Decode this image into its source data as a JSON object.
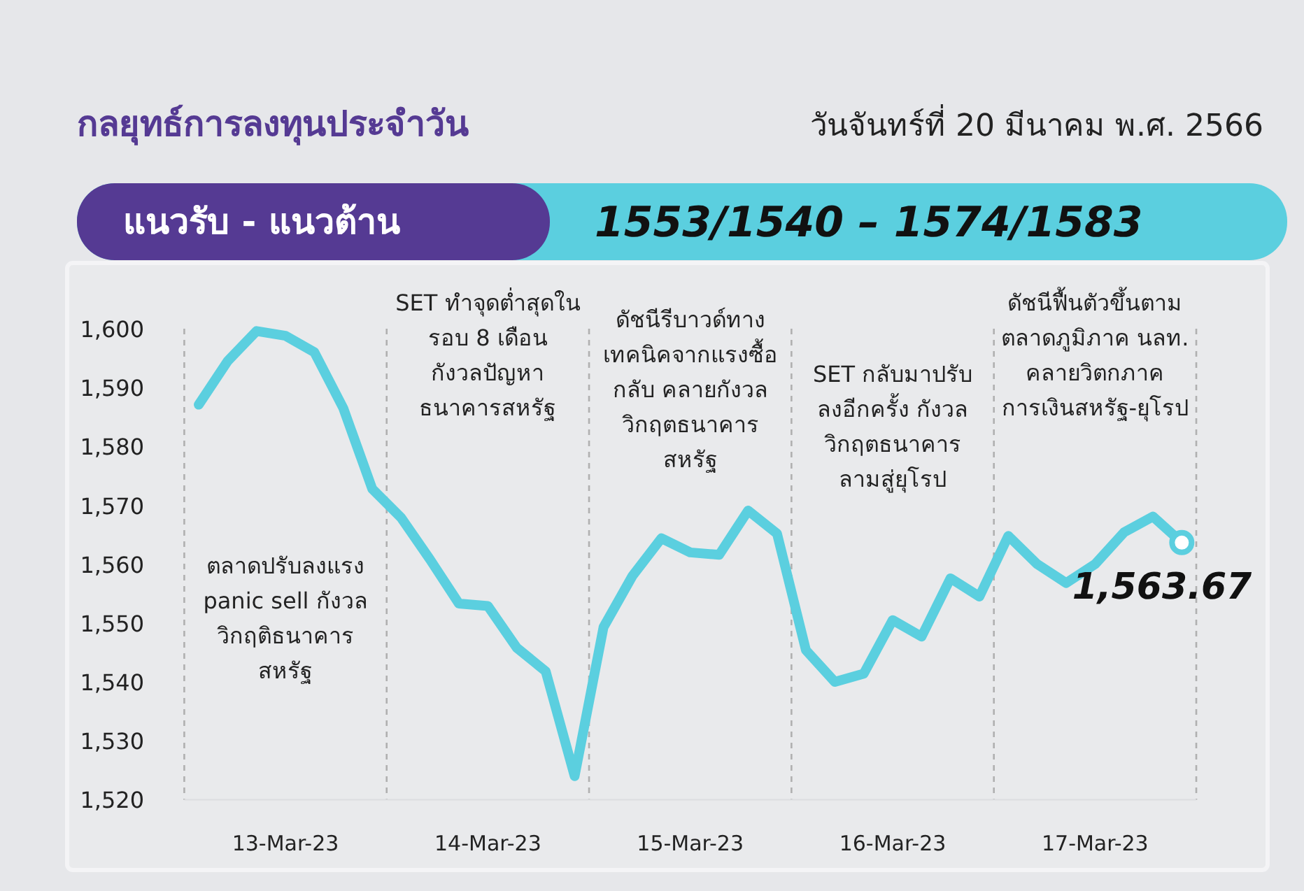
{
  "chart_data": {
    "type": "line",
    "title": "กลยุทธ์การลงทุนประจำวัน",
    "subtitle": "วันจันทร์ที่ 20 มีนาคม พ.ศ. 2566",
    "categories": [
      null,
      null,
      null,
      "13-Mar-23",
      null,
      null,
      null,
      null,
      null,
      null,
      "14-Mar-23",
      null,
      null,
      null,
      null,
      null,
      null,
      "15-Mar-23",
      null,
      null,
      null,
      null,
      null,
      null,
      "16-Mar-23",
      null,
      null,
      null,
      null,
      null,
      null,
      "17-Mar-23",
      null,
      null,
      null
    ],
    "series": [
      {
        "color": "#5bcfdf",
        "values": [
          1587.1,
          1594.5,
          1599.6,
          1598.8,
          1596.0,
          1586.5,
          1572.8,
          1567.9,
          1560.8,
          1553.3,
          1552.9,
          1545.8,
          1541.8,
          1524.0,
          1549.3,
          1558.0,
          1564.4,
          1562.0,
          1561.6,
          1569.1,
          1565.2,
          1545.4,
          1540.0,
          1541.4,
          1550.5,
          1547.7,
          1557.6,
          1554.5,
          1564.8,
          1560.0,
          1556.8,
          1560.0,
          1565.4,
          1568.1,
          1563.67
        ]
      }
    ],
    "ylim": [
      1520,
      1600
    ],
    "yticks": [
      {
        "value": 1520,
        "label": "1,520"
      },
      {
        "value": 1530,
        "label": "1,530"
      },
      {
        "value": 1540,
        "label": "1,540"
      },
      {
        "value": 1550,
        "label": "1,550"
      },
      {
        "value": 1560,
        "label": "1,560"
      },
      {
        "value": 1570,
        "label": "1,570"
      },
      {
        "value": 1580,
        "label": "1,580"
      },
      {
        "value": 1590,
        "label": "1,590"
      },
      {
        "value": 1600,
        "label": "1,600"
      }
    ],
    "annotations": [
      "แนวรับ - แนวต้าน",
      "1553/1540 – 1574/1583",
      "ตลาดปรับลงแรง\npanic sell กังวล\nวิกฤติธนาคาร\nสหรัฐ",
      "SET ทำจุดต่ำสุดใน\nรอบ 8 เดือน\nกังวลปัญหา\nธนาคารสหรัฐ",
      "ดัชนีรีบาวด์ทาง\nเทคนิคจากแรงซื้อ\nกลับ คลายกังวล\nวิกฤตธนาคาร\nสหรัฐ",
      "SET กลับมาปรับ\nลงอีกครั้ง กังวล\nวิกฤตธนาคาร\nลามสู่ยุโรป",
      "ดัชนีฟื้นตัวขึ้นตาม\nตลาดภูมิภาค นลท.\nคลายวิตกภาค\nการเงินสหรัฐ-ยุโรป",
      "1,563.67"
    ],
    "grid": false,
    "marker": "none",
    "line_style": "solid"
  }
}
